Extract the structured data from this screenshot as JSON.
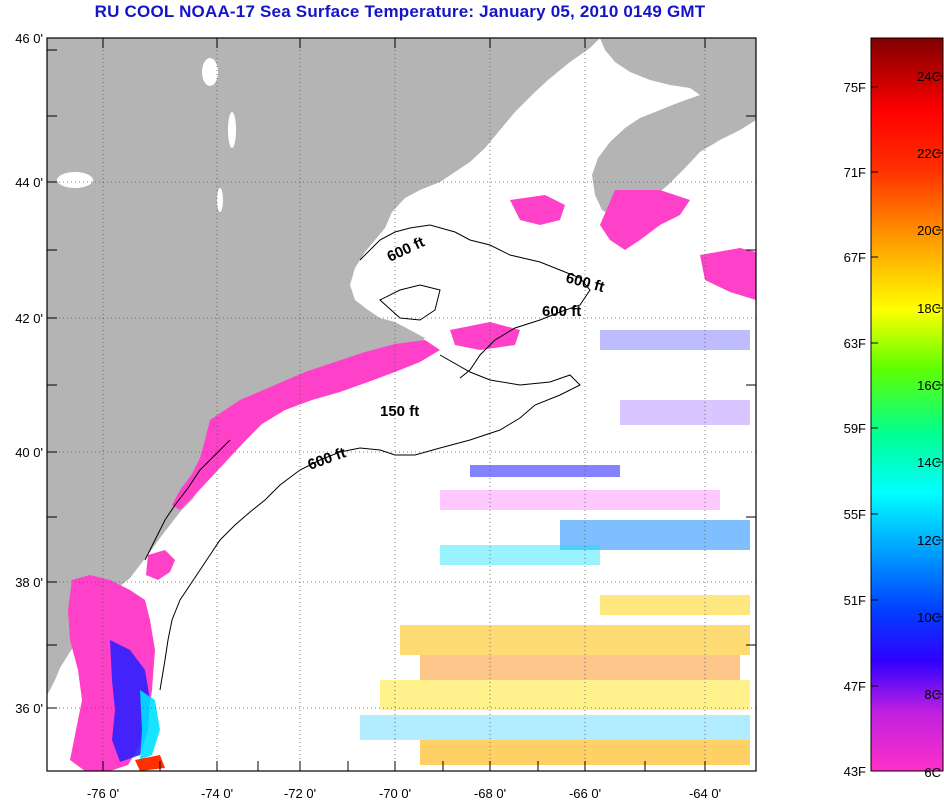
{
  "title": "RU COOL  NOAA-17  Sea Surface Temperature:  January 05, 2010 0149 GMT",
  "map": {
    "lat_labels": [
      "46 0'",
      "44 0'",
      "42 0'",
      "40 0'",
      "38 0'",
      "36 0'"
    ],
    "lon_labels": [
      "-76 0'",
      "-74 0'",
      "-72 0'",
      "-70 0'",
      "-68 0'",
      "-66 0'",
      "-64 0'"
    ],
    "contour_labels": [
      "600 ft",
      "600 ft",
      "600 ft",
      "150 ft",
      "600 ft"
    ],
    "colors": {
      "land": "#b4b4b4",
      "water_cloud": "#ffffff",
      "cold_sst": "#ff40c8"
    }
  },
  "colorbar": {
    "fahrenheit_labels": [
      "75F",
      "71F",
      "67F",
      "63F",
      "59F",
      "55F",
      "51F",
      "47F",
      "43F"
    ],
    "celsius_labels": [
      "24C",
      "22C",
      "20C",
      "18C",
      "16C",
      "14C",
      "12C",
      "10C",
      "8C",
      "6C"
    ],
    "stops": [
      "#ff30c8",
      "#8000e0",
      "#0000ff",
      "#0090ff",
      "#00ffff",
      "#00ff80",
      "#80ff00",
      "#ffff00",
      "#ffa000",
      "#ff4000",
      "#ff0000",
      "#800000"
    ]
  }
}
